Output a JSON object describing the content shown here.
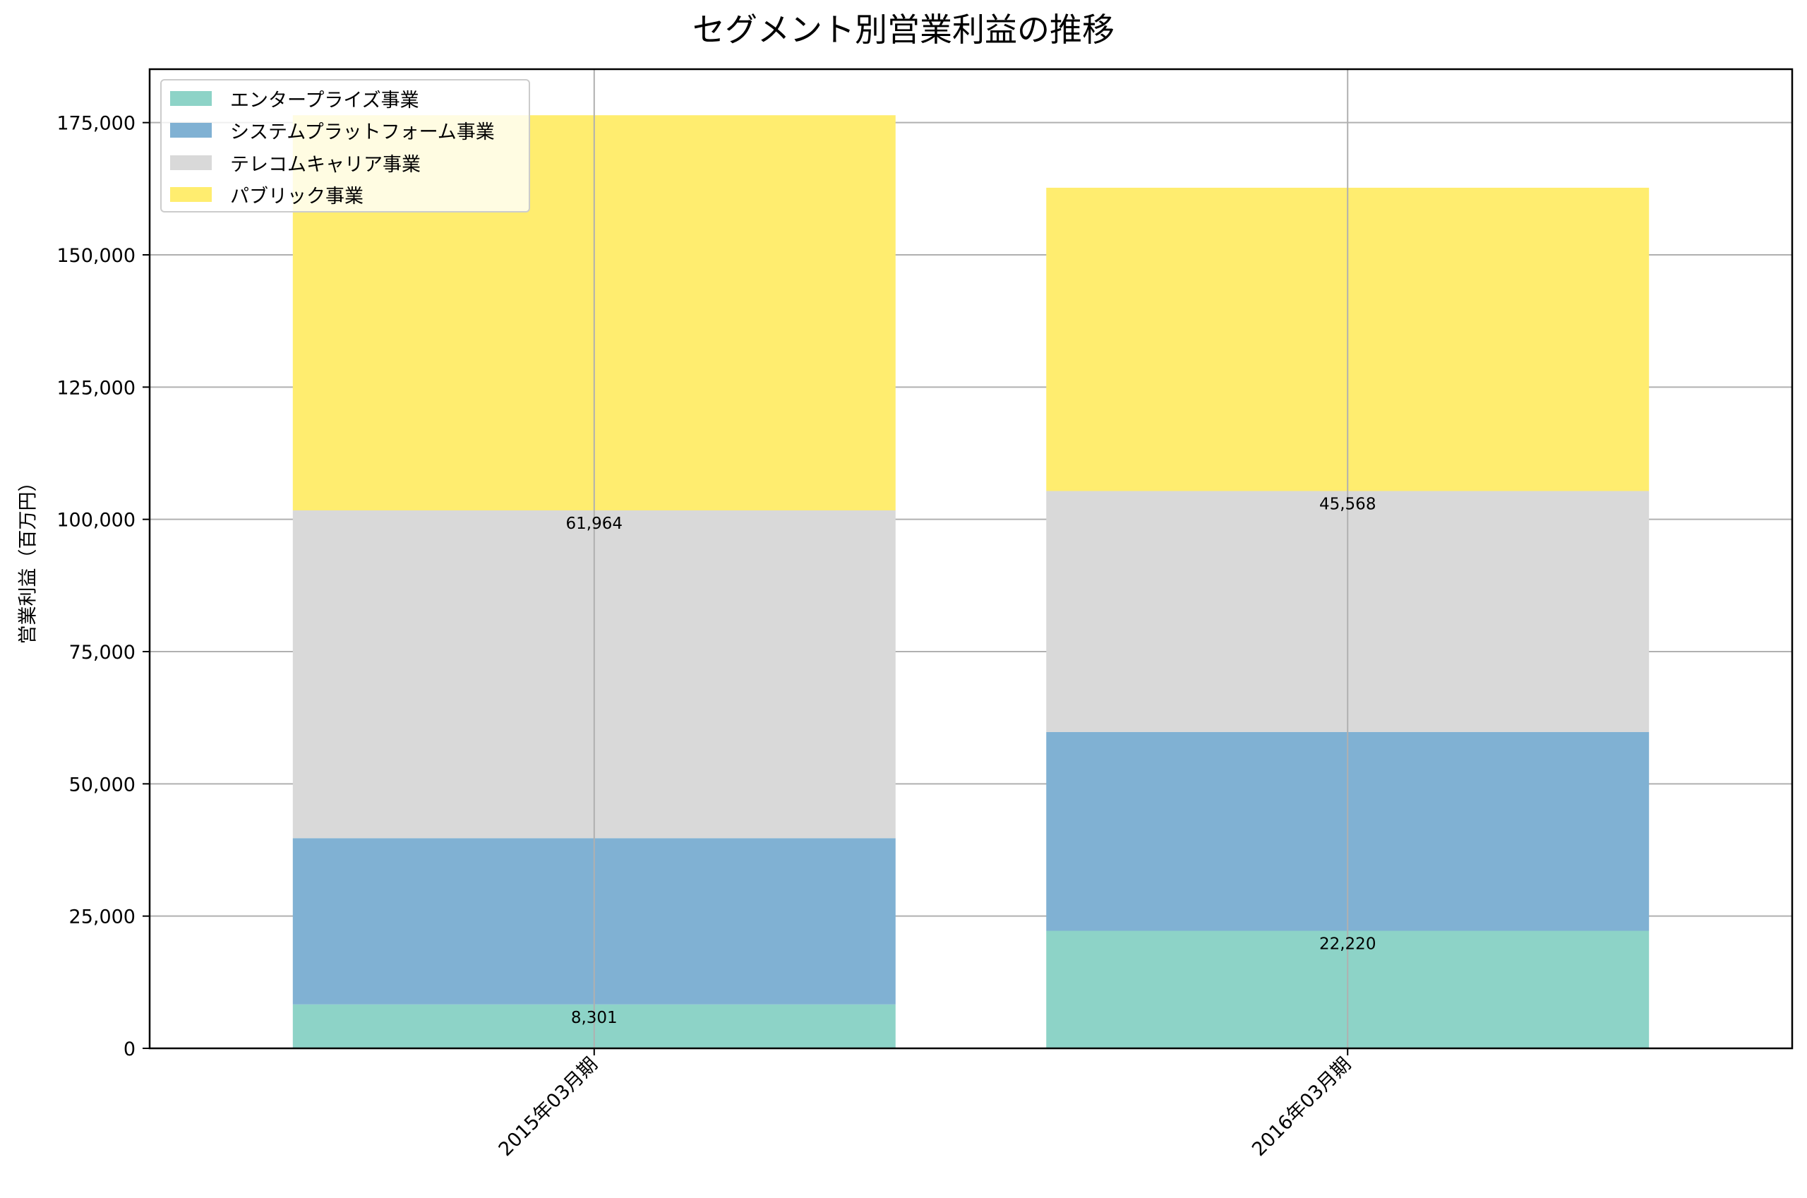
{
  "chart_data": {
    "type": "bar",
    "stacked": true,
    "title": "セグメント別営業利益の推移",
    "xlabel": "",
    "ylabel": "営業利益（百万円）",
    "categories": [
      "2015年03月期",
      "2016年03月期"
    ],
    "series": [
      {
        "name": "エンタープライズ事業",
        "color": "#8dd3c7",
        "values": [
          8301,
          22220
        ]
      },
      {
        "name": "システムプラットフォーム事業",
        "color": "#80b1d3",
        "values": [
          31430,
          37570
        ]
      },
      {
        "name": "テレコムキャリア事業",
        "color": "#d9d9d9",
        "values": [
          61964,
          45568
        ]
      },
      {
        "name": "パブリック事業",
        "color": "#ffed6f",
        "values": [
          74700,
          57330
        ]
      }
    ],
    "totals": [
      176395,
      162688
    ],
    "data_labels": [
      {
        "category": "2015年03月期",
        "series": "エンタープライズ事業",
        "text": "8,301"
      },
      {
        "category": "2016年03月期",
        "series": "エンタープライズ事業",
        "text": "22,220"
      },
      {
        "category": "2015年03月期",
        "series": "テレコムキャリア事業",
        "text": "61,964"
      },
      {
        "category": "2016年03月期",
        "series": "テレコムキャリア事業",
        "text": "45,568"
      }
    ],
    "yticks": [
      0,
      25000,
      50000,
      75000,
      100000,
      125000,
      150000,
      175000
    ],
    "ytick_labels": [
      "0",
      "25,000",
      "50,000",
      "75,000",
      "100,000",
      "125,000",
      "150,000",
      "175,000"
    ],
    "ylim": [
      0,
      185100
    ],
    "grid": true,
    "legend_position": "upper left"
  },
  "legend": {
    "items": [
      {
        "label": "エンタープライズ事業",
        "color": "#8dd3c7"
      },
      {
        "label": "システムプラットフォーム事業",
        "color": "#80b1d3"
      },
      {
        "label": "テレコムキャリア事業",
        "color": "#d9d9d9"
      },
      {
        "label": "パブリック事業",
        "color": "#ffed6f"
      }
    ]
  }
}
